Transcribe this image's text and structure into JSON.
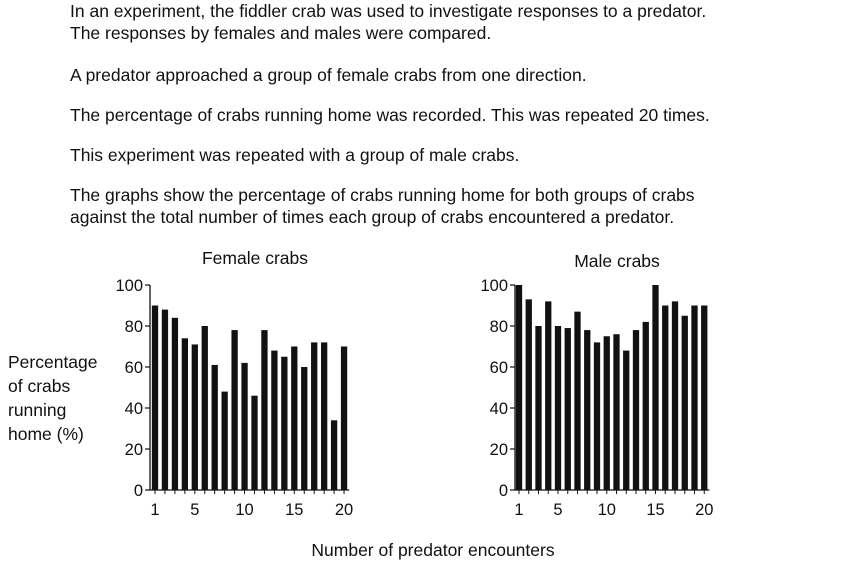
{
  "text": {
    "p1_line1": "In an experiment, the fiddler crab was used to investigate responses to a predator.",
    "p1_line2": "The responses by females and males were compared.",
    "p2": "A predator approached a group of female crabs from one direction.",
    "p3": "The percentage of crabs running home was recorded. This was repeated 20 times.",
    "p4": "This experiment was repeated with a group of male crabs.",
    "p5_line1": "The graphs show the percentage of crabs running home for both groups of crabs",
    "p5_line2": "against the total number of times each group of crabs encountered a predator."
  },
  "ylabel_lines": [
    "Percentage",
    "of crabs",
    "running",
    "home (%)"
  ],
  "xlabel": "Number of predator encounters",
  "chart_data": [
    {
      "type": "bar",
      "title": "Female crabs",
      "xlabel": "Number of predator encounters",
      "ylabel": "Percentage of crabs running home (%)",
      "categories": [
        1,
        2,
        3,
        4,
        5,
        6,
        7,
        8,
        9,
        10,
        11,
        12,
        13,
        14,
        15,
        16,
        17,
        18,
        19,
        20
      ],
      "values": [
        90,
        88,
        84,
        74,
        71,
        80,
        61,
        48,
        78,
        62,
        46,
        78,
        68,
        65,
        70,
        60,
        72,
        72,
        34,
        70
      ],
      "ylim": [
        0,
        100
      ],
      "yticks": [
        0,
        20,
        40,
        60,
        80,
        100
      ],
      "xtick_labels": [
        1,
        5,
        10,
        15,
        20
      ]
    },
    {
      "type": "bar",
      "title": "Male crabs",
      "xlabel": "Number of predator encounters",
      "ylabel": "Percentage of crabs running home (%)",
      "categories": [
        1,
        2,
        3,
        4,
        5,
        6,
        7,
        8,
        9,
        10,
        11,
        12,
        13,
        14,
        15,
        16,
        17,
        18,
        19,
        20
      ],
      "values": [
        100,
        93,
        80,
        92,
        80,
        79,
        87,
        78,
        72,
        75,
        76,
        68,
        78,
        82,
        100,
        90,
        92,
        85,
        90,
        90
      ],
      "ylim": [
        0,
        100
      ],
      "yticks": [
        0,
        20,
        40,
        60,
        80,
        100
      ],
      "xtick_labels": [
        1,
        5,
        10,
        15,
        20
      ]
    }
  ]
}
